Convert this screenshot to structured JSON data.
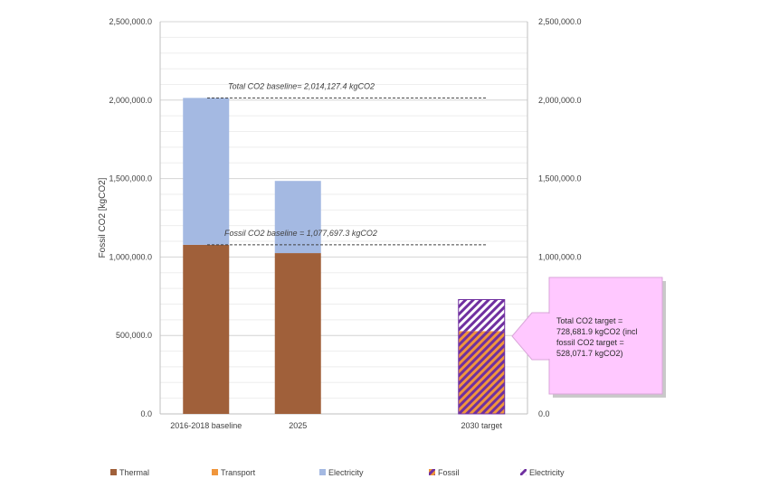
{
  "chart_data": {
    "type": "bar",
    "categories": [
      "2016-2018 baseline",
      "2025",
      "",
      "2030 target"
    ],
    "stacked": true,
    "ylabel": "Fossil CO2  [kgCO2]",
    "ylim": [
      0,
      2500000
    ],
    "yticks": [
      "0.0",
      "500,000.0",
      "1,000,000.0",
      "1,500,000.0",
      "2,000,000.0",
      "2,500,000.0"
    ],
    "ytick_values": [
      0,
      500000,
      1000000,
      1500000,
      2000000,
      2500000
    ],
    "secondary_axis": true,
    "grid": true,
    "series": [
      {
        "name": "Thermal",
        "color": "#a0603a",
        "pattern": "solid",
        "values": [
          1077697.3,
          1025000,
          0,
          0
        ]
      },
      {
        "name": "Transport",
        "color": "#f0963c",
        "pattern": "solid",
        "values": [
          0,
          0,
          0,
          0
        ]
      },
      {
        "name": "Electricity",
        "color": "#a4b9e2",
        "pattern": "solid",
        "values": [
          936430.1,
          460000,
          0,
          0
        ]
      },
      {
        "name": "Fossil",
        "color": "#7030a0",
        "pattern": "hatch-orange",
        "values": [
          0,
          0,
          0,
          528071.7
        ]
      },
      {
        "name": "Electricity",
        "color": "#7030a0",
        "pattern": "hatch-white",
        "values": [
          0,
          0,
          0,
          200610.2
        ]
      }
    ],
    "reference_lines": [
      {
        "label": "Total CO2 baseline= 2,014,127.4 kgCO2",
        "value": 2014127.4
      },
      {
        "label": "Fossil CO2 baseline = 1,077,697.3 kgCO2",
        "value": 1077697.3
      }
    ],
    "callout": {
      "lines": [
        "Total CO2 target =",
        "728,681.9 kgCO2 (incl",
        "fossil CO2 target =",
        "528,071.7 kgCO2)"
      ],
      "color": "#ffc8ff",
      "border": "#d9a6d9"
    },
    "legend_position": "bottom"
  }
}
